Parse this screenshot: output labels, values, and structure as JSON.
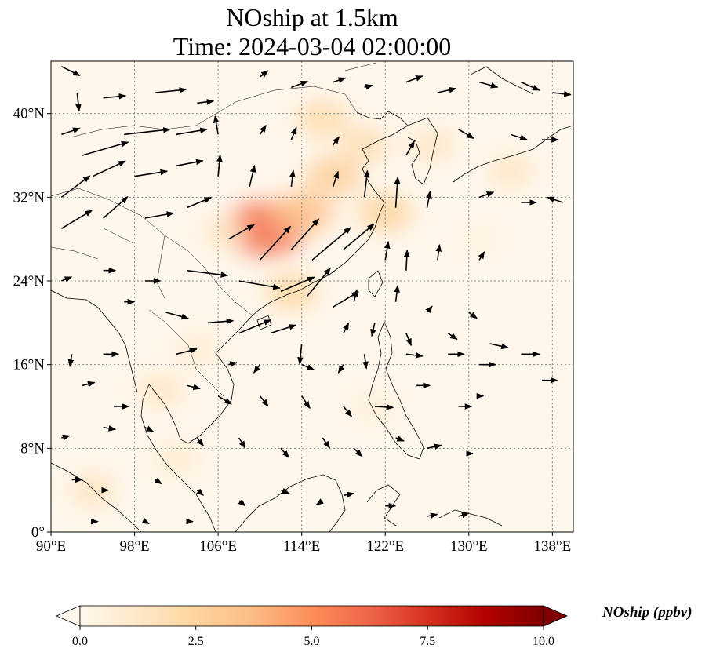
{
  "title": {
    "line1": "NOship at 1.5km",
    "line2": "Time: 2024-03-04 02:00:00"
  },
  "map": {
    "projection": "PlateCarree",
    "extent": {
      "lon": [
        90,
        140
      ],
      "lat": [
        0,
        45
      ]
    },
    "lon_ticks": [
      {
        "value": 90,
        "label": "90°E"
      },
      {
        "value": 98,
        "label": "98°E"
      },
      {
        "value": 106,
        "label": "106°E"
      },
      {
        "value": 114,
        "label": "114°E"
      },
      {
        "value": 122,
        "label": "122°E"
      },
      {
        "value": 130,
        "label": "130°E"
      },
      {
        "value": 138,
        "label": "138°E"
      }
    ],
    "lat_ticks": [
      {
        "value": 0,
        "label": "0°"
      },
      {
        "value": 8,
        "label": "8°N"
      },
      {
        "value": 16,
        "label": "16°N"
      },
      {
        "value": 24,
        "label": "24°N"
      },
      {
        "value": 32,
        "label": "32°N"
      },
      {
        "value": 40,
        "label": "40°N"
      }
    ],
    "gridlines": true,
    "field": "NOship",
    "units": "ppbv",
    "high_concentration_areas": [
      {
        "lon": 110.5,
        "lat": 29.0,
        "value": 6.0
      },
      {
        "lon": 114.0,
        "lat": 30.5,
        "value": 3.5
      },
      {
        "lon": 117.0,
        "lat": 34.0,
        "value": 2.8
      },
      {
        "lon": 122.0,
        "lat": 30.5,
        "value": 2.6
      },
      {
        "lon": 120.0,
        "lat": 37.0,
        "value": 2.0
      },
      {
        "lon": 116.0,
        "lat": 39.5,
        "value": 2.2
      },
      {
        "lon": 113.0,
        "lat": 23.0,
        "value": 2.4
      },
      {
        "lon": 106.5,
        "lat": 28.5,
        "value": 1.4
      },
      {
        "lon": 100.5,
        "lat": 13.5,
        "value": 1.5
      },
      {
        "lon": 94.0,
        "lat": 4.0,
        "value": 1.6
      },
      {
        "lon": 102.0,
        "lat": 7.0,
        "value": 1.2
      },
      {
        "lon": 126.5,
        "lat": 37.0,
        "value": 1.5
      },
      {
        "lon": 134.0,
        "lat": 34.5,
        "value": 1.5
      },
      {
        "lon": 104.0,
        "lat": 17.5,
        "value": 1.1
      },
      {
        "lon": 121.0,
        "lat": 12.0,
        "value": 0.9
      },
      {
        "lon": 131.0,
        "lat": 28.0,
        "value": 0.6
      }
    ],
    "wind_vectors_note_removed": true
  },
  "colorbar": {
    "label": "NOship (ppbv)",
    "min": 0.0,
    "max": 10.0,
    "extend": "both",
    "colormap": "OrRd",
    "ticks": [
      {
        "value": 0.0,
        "label": "0.0"
      },
      {
        "value": 2.5,
        "label": "2.5"
      },
      {
        "value": 5.0,
        "label": "5.0"
      },
      {
        "value": 7.5,
        "label": "7.5"
      },
      {
        "value": 10.0,
        "label": "10.0"
      }
    ],
    "stops": [
      "#fff7ec",
      "#fee8c8",
      "#fdd49e",
      "#fdbb84",
      "#fc8d59",
      "#ef6548",
      "#d7301f",
      "#b30000",
      "#7f0000"
    ]
  },
  "colors": {
    "arrow": "#000000",
    "grid": "#808080",
    "coast": "#000000"
  }
}
